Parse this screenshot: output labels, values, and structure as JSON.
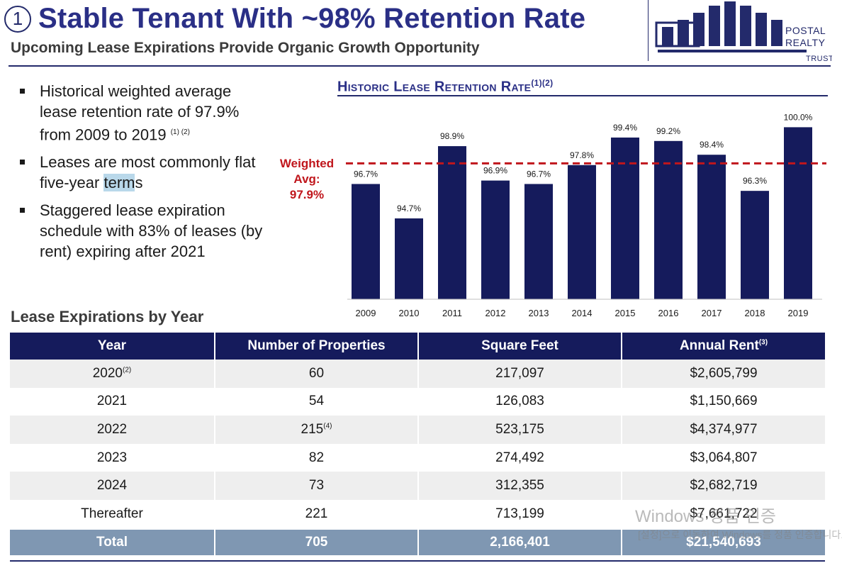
{
  "header": {
    "number": "1",
    "title": "Stable Tenant With ~98% Retention Rate",
    "subtitle": "Upcoming Lease Expirations Provide Organic Growth Opportunity"
  },
  "logo": {
    "line1": "POSTAL",
    "line2": "REALTY",
    "line3": "TRUST"
  },
  "bullets": [
    {
      "text": "Historical weighted average lease retention rate of 97.9% from 2009 to 2019",
      "sup": "(1) (2)"
    },
    {
      "text_before": "Leases are most commonly flat five-year ",
      "highlight": "term",
      "text_after": "s"
    },
    {
      "text": "Staggered lease expiration schedule with 83% of leases (by rent) expiring after 2021"
    }
  ],
  "chart_data": {
    "type": "bar",
    "title": "Historic Lease Retention Rate",
    "title_sup": "(1)(2)",
    "categories": [
      "2009",
      "2010",
      "2011",
      "2012",
      "2013",
      "2014",
      "2015",
      "2016",
      "2017",
      "2018",
      "2019"
    ],
    "values": [
      96.7,
      94.7,
      98.9,
      96.9,
      96.7,
      97.8,
      99.4,
      99.2,
      98.4,
      96.3,
      100.0
    ],
    "labels": [
      "96.7%",
      "94.7%",
      "98.9%",
      "96.9%",
      "96.7%",
      "97.8%",
      "99.4%",
      "99.2%",
      "98.4%",
      "96.3%",
      "100.0%"
    ],
    "ylim": [
      90.0,
      100.8
    ],
    "reference_line": {
      "value": 97.9,
      "label_line1": "Weighted",
      "label_line2": "Avg:",
      "label_line3": "97.9%"
    },
    "bar_color": "#151b5c",
    "ref_color": "#c0161c"
  },
  "table": {
    "title": "Lease Expirations by Year",
    "headers": [
      "Year",
      "Number of Properties",
      "Square Feet",
      "Annual Rent"
    ],
    "header_sup": "(3)",
    "rows": [
      {
        "year": "2020",
        "year_sup": "(2)",
        "props": "60",
        "props_sup": "",
        "sqft": "217,097",
        "rent": "$2,605,799"
      },
      {
        "year": "2021",
        "year_sup": "",
        "props": "54",
        "props_sup": "",
        "sqft": "126,083",
        "rent": "$1,150,669"
      },
      {
        "year": "2022",
        "year_sup": "",
        "props": "215",
        "props_sup": "(4)",
        "sqft": "523,175",
        "rent": "$4,374,977"
      },
      {
        "year": "2023",
        "year_sup": "",
        "props": "82",
        "props_sup": "",
        "sqft": "274,492",
        "rent": "$3,064,807"
      },
      {
        "year": "2024",
        "year_sup": "",
        "props": "73",
        "props_sup": "",
        "sqft": "312,355",
        "rent": "$2,682,719"
      },
      {
        "year": "Thereafter",
        "year_sup": "",
        "props": "221",
        "props_sup": "",
        "sqft": "713,199",
        "rent": "$7,661,722"
      }
    ],
    "total": {
      "label": "Total",
      "props": "705",
      "sqft": "2,166,401",
      "rent": "$21,540,693"
    }
  },
  "watermark": {
    "line1": "Windows 정품 인증",
    "line2": "[설정]으로 이동하여 Windows를 정품 인증합니다."
  }
}
